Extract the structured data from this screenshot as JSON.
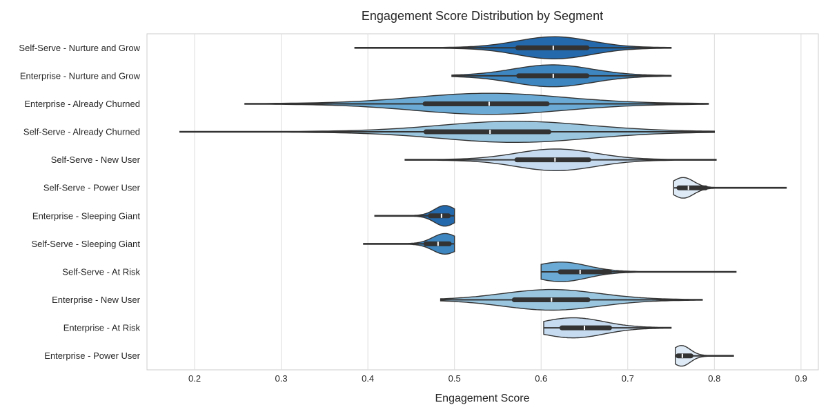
{
  "chart_data": {
    "type": "violin",
    "title": "Engagement Score Distribution by Segment",
    "xlabel": "Engagement Score",
    "ylabel": "",
    "xlim": [
      0.145,
      0.92
    ],
    "xticks": [
      0.2,
      0.3,
      0.4,
      0.5,
      0.6,
      0.7,
      0.8,
      0.9
    ],
    "xtick_labels": [
      "0.2",
      "0.3",
      "0.4",
      "0.5",
      "0.6",
      "0.7",
      "0.8",
      "0.9"
    ],
    "grid": "vertical",
    "palette": [
      "#2469ab",
      "#3d86c0",
      "#6aaad4",
      "#9ac6e0",
      "#c6dbef",
      "#deebf7"
    ],
    "edge_color": "#333333",
    "series": [
      {
        "category": "Self-Serve - Nurture and Grow",
        "min": 0.385,
        "q1": 0.573,
        "median": 0.614,
        "q3": 0.653,
        "max": 0.75,
        "mode": 0.615,
        "spread": 0.042,
        "width": 0.86,
        "color": "#2469ab"
      },
      {
        "category": "Enterprise - Nurture and Grow",
        "min": 0.497,
        "q1": 0.574,
        "median": 0.614,
        "q3": 0.653,
        "max": 0.75,
        "mode": 0.613,
        "spread": 0.045,
        "width": 0.85,
        "color": "#3d86c0"
      },
      {
        "category": "Enterprise - Already Churned",
        "min": 0.258,
        "q1": 0.466,
        "median": 0.54,
        "q3": 0.607,
        "max": 0.793,
        "mode": 0.54,
        "spread": 0.085,
        "width": 0.82,
        "color": "#6aaad4"
      },
      {
        "category": "Self-Serve - Already Churned",
        "min": 0.183,
        "q1": 0.467,
        "median": 0.541,
        "q3": 0.609,
        "max": 0.8,
        "mode": 0.57,
        "spread": 0.085,
        "width": 0.82,
        "color": "#9ac6e0"
      },
      {
        "category": "Self-Serve - New User",
        "min": 0.443,
        "q1": 0.572,
        "median": 0.616,
        "q3": 0.655,
        "max": 0.802,
        "mode": 0.617,
        "spread": 0.045,
        "width": 0.84,
        "color": "#c6dbef"
      },
      {
        "category": "Self-Serve - Power User",
        "min": 0.753,
        "q1": 0.759,
        "median": 0.77,
        "q3": 0.79,
        "max": 0.883,
        "mode": 0.764,
        "spread": 0.012,
        "width": 0.8,
        "color": "#deebf7"
      },
      {
        "category": "Enterprise - Sleeping Giant",
        "min": 0.408,
        "q1": 0.472,
        "median": 0.485,
        "q3": 0.493,
        "max": 0.5,
        "mode": 0.489,
        "spread": 0.012,
        "width": 0.8,
        "color": "#2469ab"
      },
      {
        "category": "Self-Serve - Sleeping Giant",
        "min": 0.395,
        "q1": 0.467,
        "median": 0.481,
        "q3": 0.494,
        "max": 0.5,
        "mode": 0.489,
        "spread": 0.014,
        "width": 0.8,
        "color": "#3d86c0"
      },
      {
        "category": "Self-Serve - At Risk",
        "min": 0.6,
        "q1": 0.622,
        "median": 0.645,
        "q3": 0.679,
        "max": 0.825,
        "mode": 0.623,
        "spread": 0.03,
        "width": 0.76,
        "color": "#6aaad4"
      },
      {
        "category": "Enterprise - New User",
        "min": 0.484,
        "q1": 0.569,
        "median": 0.612,
        "q3": 0.654,
        "max": 0.786,
        "mode": 0.612,
        "spread": 0.055,
        "width": 0.8,
        "color": "#9ac6e0"
      },
      {
        "category": "Enterprise - At Risk",
        "min": 0.603,
        "q1": 0.624,
        "median": 0.65,
        "q3": 0.679,
        "max": 0.75,
        "mode": 0.637,
        "spread": 0.035,
        "width": 0.78,
        "color": "#c6dbef"
      },
      {
        "category": "Enterprise - Power User",
        "min": 0.755,
        "q1": 0.758,
        "median": 0.763,
        "q3": 0.773,
        "max": 0.822,
        "mode": 0.762,
        "spread": 0.01,
        "width": 0.8,
        "color": "#deebf7"
      }
    ]
  }
}
